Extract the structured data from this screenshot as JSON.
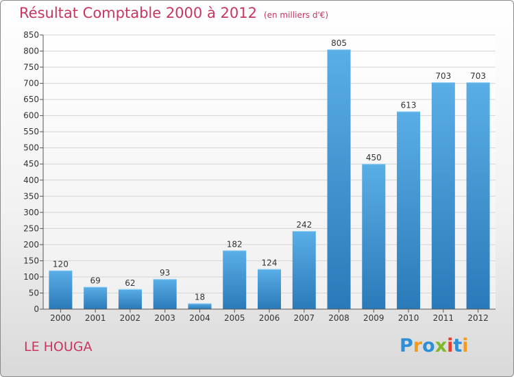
{
  "chart_data": {
    "type": "bar",
    "title": "Résultat Comptable 2000 à 2012",
    "subtitle": "(en milliers d'€)",
    "categories": [
      "2000",
      "2001",
      "2002",
      "2003",
      "2004",
      "2005",
      "2006",
      "2007",
      "2008",
      "2009",
      "2010",
      "2011",
      "2012"
    ],
    "values": [
      120,
      69,
      62,
      93,
      18,
      182,
      124,
      242,
      805,
      450,
      613,
      703,
      703
    ],
    "ylim": [
      0,
      850
    ],
    "yticks": [
      0,
      50,
      100,
      150,
      200,
      250,
      300,
      350,
      400,
      450,
      500,
      550,
      600,
      650,
      700,
      750,
      800,
      850
    ],
    "xlabel": "",
    "ylabel": "",
    "grid": true,
    "legend": "none",
    "bar_color_top": "#5aaee6",
    "bar_color_bottom": "#2a7ab9"
  },
  "location": "LE HOUGA",
  "brand": {
    "letters": [
      "P",
      "r",
      "o",
      "x",
      "i",
      "t",
      "i"
    ],
    "colors": [
      "#2f8fd6",
      "#f39a1a",
      "#2f8fd6",
      "#7fb82a",
      "#e73d2a",
      "#2f8fd6",
      "#f39a1a"
    ]
  }
}
